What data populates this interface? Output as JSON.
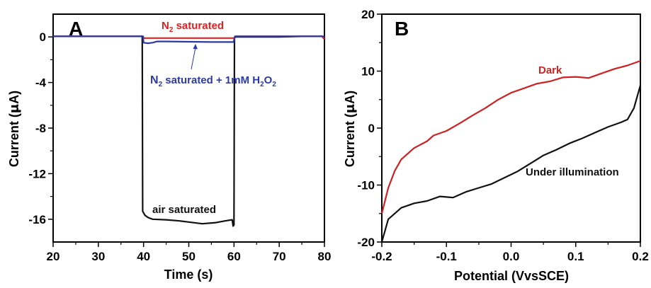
{
  "chart_data": [
    {
      "panel_label": "A",
      "type": "line",
      "xlabel": "Time (s)",
      "ylabel": "Current (",
      "ylabel_symbol": "μ",
      "ylabel_unit": "A)",
      "xlim": [
        20,
        80
      ],
      "ylim": [
        -18,
        2
      ],
      "xticks": [
        20,
        30,
        40,
        50,
        60,
        70,
        80
      ],
      "yticks": [
        0,
        -4,
        -8,
        -12,
        -16
      ],
      "grid": false,
      "series": [
        {
          "name": "air saturated",
          "color": "#111111",
          "x": [
            20,
            39.7,
            39.8,
            40.3,
            41,
            42,
            45,
            48,
            50,
            53,
            56,
            58,
            59.6,
            59.8,
            60,
            60.1,
            60.3,
            65,
            70,
            75,
            79.5,
            80
          ],
          "y": [
            0.05,
            0.05,
            -15.3,
            -15.65,
            -15.85,
            -16.0,
            -16.05,
            -16.15,
            -16.25,
            -16.4,
            -16.3,
            -16.15,
            -16.05,
            -16.6,
            -16.5,
            -0.1,
            0.0,
            0.0,
            0.0,
            0.05,
            0.05,
            -0.2
          ]
        },
        {
          "name": "N2 saturated",
          "color": "#dd2222",
          "x": [
            20,
            39.9,
            40,
            45,
            50,
            55,
            60,
            60.3,
            70,
            79.5,
            80
          ],
          "y": [
            0.05,
            0.05,
            -0.1,
            -0.1,
            -0.1,
            -0.1,
            -0.1,
            0.05,
            0.05,
            0.05,
            -0.2
          ]
        },
        {
          "name": "N2 saturated + 1mM H2O2",
          "color": "#2b3aa6",
          "x": [
            20,
            39.9,
            40,
            41,
            42,
            43,
            45,
            50,
            55,
            59.9,
            60.2,
            70,
            80
          ],
          "y": [
            0.05,
            0.05,
            -0.5,
            -0.55,
            -0.5,
            -0.4,
            -0.4,
            -0.42,
            -0.45,
            -0.45,
            0.05,
            0.05,
            0.05
          ]
        }
      ],
      "annotations": {
        "n2_main": "N",
        "n2_sub": "2",
        "n2_rest": " saturated",
        "h2o2_n": "N",
        "h2o2_sub2": "2",
        "h2o2_mid": " saturated + 1mM H",
        "h2o2_subh": "2",
        "h2o2_o": "O",
        "h2o2_subo": "2",
        "air": "air saturated"
      }
    },
    {
      "panel_label": "B",
      "type": "line",
      "xlabel": "Potential (VvsSCE)",
      "ylabel": "Current (",
      "ylabel_symbol": "μ",
      "ylabel_unit": "A)",
      "xlim": [
        -0.2,
        0.2
      ],
      "ylim": [
        -20,
        20
      ],
      "xticks": [
        -0.2,
        -0.1,
        0.0,
        0.1,
        0.2
      ],
      "xtick_labels": [
        "-0.2",
        "-0.1",
        "0.0",
        "0.1",
        "0.2"
      ],
      "yticks": [
        20,
        10,
        0,
        -10,
        -20
      ],
      "grid": false,
      "series": [
        {
          "name": "Dark",
          "color": "#cc2222",
          "x": [
            -0.2,
            -0.19,
            -0.18,
            -0.17,
            -0.15,
            -0.13,
            -0.12,
            -0.1,
            -0.08,
            -0.06,
            -0.04,
            -0.02,
            0.0,
            0.02,
            0.04,
            0.06,
            0.08,
            0.1,
            0.12,
            0.14,
            0.16,
            0.18,
            0.2
          ],
          "y": [
            -15,
            -10.5,
            -7.5,
            -5.5,
            -3.5,
            -2.3,
            -1.3,
            -0.5,
            0.8,
            2.2,
            3.5,
            5.0,
            6.2,
            7.0,
            7.8,
            8.2,
            8.9,
            9.0,
            8.8,
            9.6,
            10.4,
            11.0,
            11.8
          ]
        },
        {
          "name": "Under illumination",
          "color": "#111111",
          "x": [
            -0.2,
            -0.19,
            -0.17,
            -0.15,
            -0.13,
            -0.11,
            -0.09,
            -0.07,
            -0.05,
            -0.03,
            -0.01,
            0.01,
            0.03,
            0.05,
            0.07,
            0.09,
            0.11,
            0.13,
            0.15,
            0.17,
            0.18,
            0.19,
            0.2
          ],
          "y": [
            -20,
            -16,
            -14,
            -13.2,
            -12.8,
            -12.0,
            -12.2,
            -11.2,
            -10.5,
            -9.8,
            -8.7,
            -7.6,
            -6.2,
            -4.8,
            -3.8,
            -2.7,
            -1.8,
            -0.8,
            0.2,
            1.0,
            1.5,
            3.5,
            7.5
          ]
        }
      ],
      "annotations": {
        "dark": "Dark",
        "illum": "Under illumination"
      }
    }
  ]
}
